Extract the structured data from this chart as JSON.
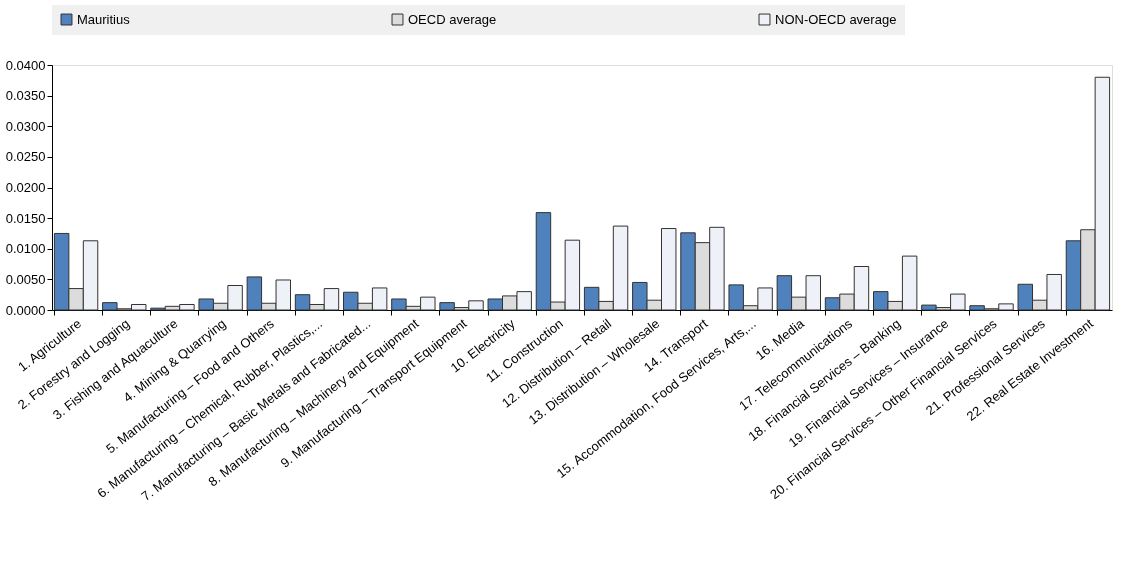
{
  "chart_data": {
    "type": "bar",
    "categories": [
      "1. Agriculture",
      "2. Forestry and Logging",
      "3. Fishing and Aquaculture",
      "4. Mining & Quarrying",
      "5. Manufacturing – Food and Others",
      "6. Manufacturing – Chemical, Rubber, Plastics,...",
      "7. Manufacturing – Basic Metals and Fabricated...",
      "8. Manufacturing – Machinery and Equipment",
      "9. Manufacturing – Transport Equipment",
      "10. Electricity",
      "11. Construction",
      "12. Distribution – Retail",
      "13. Distribution – Wholesale",
      "14. Transport",
      "15. Accommodation, Food Services, Arts,...",
      "16. Media",
      "17. Telecommunications",
      "18. Financial Services – Banking",
      "19. Financial Services – Insurance",
      "20. Financial Services – Other Financial Services",
      "21. Professional Services",
      "22. Real Estate Investment"
    ],
    "series": [
      {
        "name": "Mauritius",
        "color": "#4f81bd",
        "values": [
          0.0125,
          0.0012,
          0.0003,
          0.0018,
          0.0054,
          0.0025,
          0.0029,
          0.0018,
          0.0012,
          0.0018,
          0.0159,
          0.0037,
          0.0045,
          0.0126,
          0.0041,
          0.0056,
          0.002,
          0.003,
          0.0008,
          0.0007,
          0.0042,
          0.0113
        ]
      },
      {
        "name": "OECD average",
        "color": "#dcdcdc",
        "values": [
          0.0035,
          0.0002,
          0.0006,
          0.0011,
          0.0011,
          0.0009,
          0.0011,
          0.0006,
          0.0004,
          0.0023,
          0.0013,
          0.0014,
          0.0016,
          0.011,
          0.0007,
          0.0021,
          0.0026,
          0.0014,
          0.0004,
          0.0002,
          0.0016,
          0.0131
        ]
      },
      {
        "name": "NON-OECD average",
        "color": "#eef1f8",
        "values": [
          0.0113,
          0.0009,
          0.0009,
          0.004,
          0.0049,
          0.0035,
          0.0036,
          0.0021,
          0.0015,
          0.003,
          0.0114,
          0.0137,
          0.0133,
          0.0135,
          0.0036,
          0.0056,
          0.0071,
          0.0088,
          0.0026,
          0.001,
          0.0058,
          0.038
        ]
      }
    ],
    "ylim": [
      0,
      0.04
    ],
    "yticks": [
      {
        "value": 0,
        "label": "0.0000"
      },
      {
        "value": 0.005,
        "label": "0.0050"
      },
      {
        "value": 0.01,
        "label": "0.0100"
      },
      {
        "value": 0.015,
        "label": "0.0150"
      },
      {
        "value": 0.02,
        "label": "0.0200"
      },
      {
        "value": 0.025,
        "label": "0.0250"
      },
      {
        "value": 0.03,
        "label": "0.0300"
      },
      {
        "value": 0.035,
        "label": "0.0350"
      },
      {
        "value": 0.04,
        "label": "0.0400"
      }
    ],
    "legend": "top",
    "grid": false
  }
}
